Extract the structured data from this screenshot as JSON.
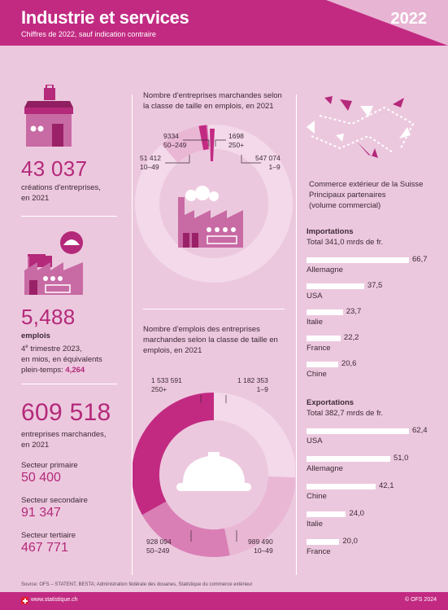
{
  "header": {
    "title": "Industrie et services",
    "subtitle": "Chiffres de 2022, sauf indication contraire",
    "year": "2022"
  },
  "left": {
    "creations": {
      "value": "43 037",
      "label1": "créations d'entreprises,",
      "label2": "en 2021"
    },
    "emplois": {
      "value": "5,488",
      "label": "emplois",
      "sub1": "4e trimestre 2023,",
      "sub2": "en mios, en équivalents",
      "sub3": "plein-temps:",
      "fte": "4,264"
    },
    "entreprises": {
      "value": "609 518",
      "label1": "entreprises marchandes,",
      "label2": "en 2021"
    },
    "sectors": [
      {
        "name": "Secteur primaire",
        "value": "50 400"
      },
      {
        "name": "Secteur secondaire",
        "value": "91 347"
      },
      {
        "name": "Secteur tertiaire",
        "value": "467 771"
      }
    ]
  },
  "chart_data": [
    {
      "type": "pie",
      "title": "Nombre d'entreprises marchandes selon la classe de taille en emplois, en 2021",
      "categories": [
        "1–9",
        "10–49",
        "50–249",
        "250+"
      ],
      "values": [
        547074,
        51412,
        9334,
        1698
      ],
      "labels": [
        "547 074",
        "51 412",
        "9334",
        "1698"
      ]
    },
    {
      "type": "pie",
      "title": "Nombre d'emplois des entreprises marchandes selon la classe de taille en emplois, en 2021",
      "categories": [
        "1–9",
        "10–49",
        "50–249",
        "250+"
      ],
      "values": [
        1182353,
        989490,
        928094,
        1533591
      ],
      "labels": [
        "1 182 353",
        "989 490",
        "928 094",
        "1 533 591"
      ]
    },
    {
      "type": "bar",
      "title": "Importations",
      "subtitle": "Total 341,0 mrds de fr.",
      "categories": [
        "Allemagne",
        "USA",
        "Italie",
        "France",
        "Chine"
      ],
      "values": [
        66.7,
        37.5,
        23.7,
        22.2,
        20.6
      ],
      "labels": [
        "66,7",
        "37,5",
        "23,7",
        "22,2",
        "20,6"
      ]
    },
    {
      "type": "bar",
      "title": "Exportations",
      "subtitle": "Total 382,7 mrds de fr.",
      "categories": [
        "USA",
        "Allemagne",
        "Chine",
        "Italie",
        "France"
      ],
      "values": [
        62.4,
        51.0,
        42.1,
        24.0,
        20.0
      ],
      "labels": [
        "62,4",
        "51,0",
        "42,1",
        "24,0",
        "20,0"
      ]
    }
  ],
  "trade": {
    "title1": "Commerce extérieur de la Suisse",
    "title2": "Principaux partenaires",
    "title3": "(volume commercial)"
  },
  "footer": {
    "source": "Source: OFS – STATENT, BESTA; Administration fédérale des douanes, Statistique du commerce extérieur",
    "url": "www.statistique.ch",
    "ofs": "© OFS 2024"
  },
  "colors": {
    "magenta": "#c22a82",
    "dark": "#b4297a",
    "light": "#f3d9e9",
    "mid": "#d97fb5",
    "bg": "#ecc8de"
  }
}
